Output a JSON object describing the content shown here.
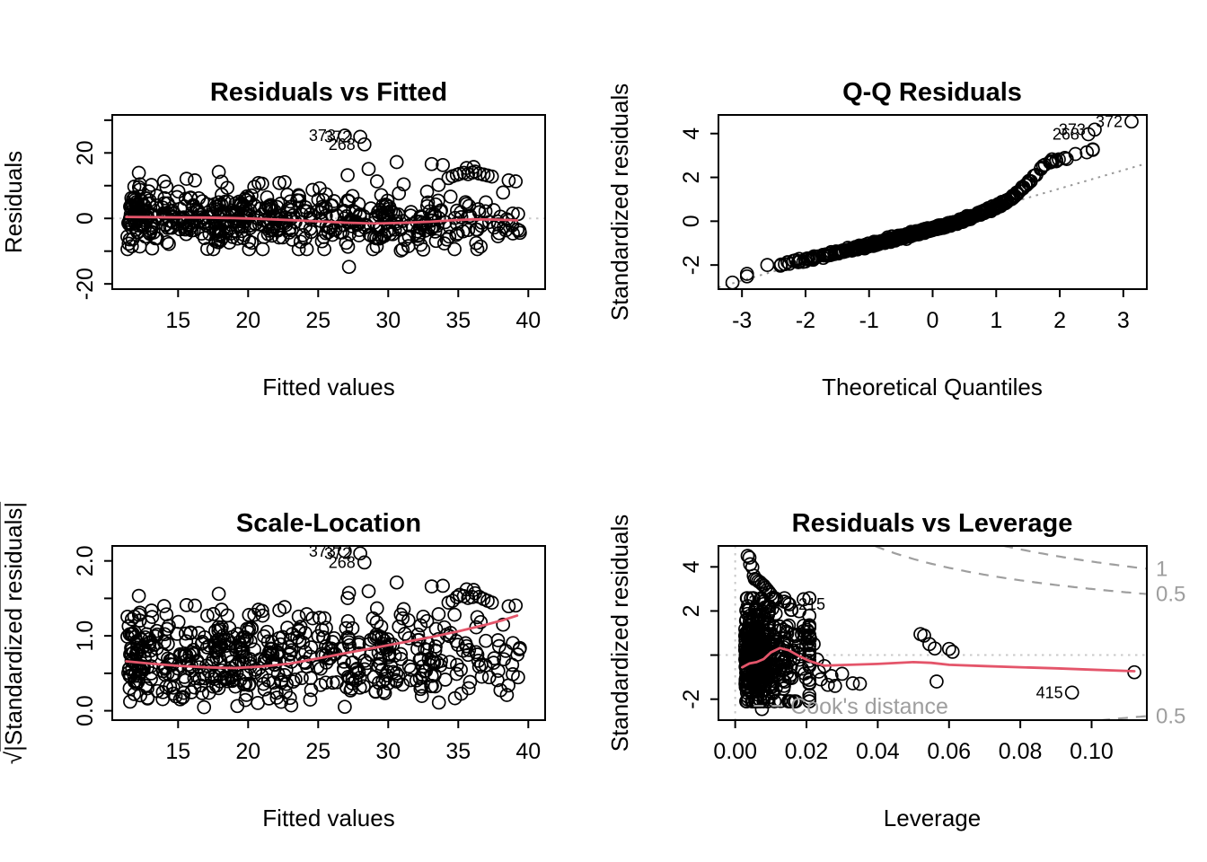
{
  "style": {
    "background": "#ffffff",
    "point_color": "#000000",
    "smooth_color": "#e4556a",
    "ref_color": "#c9c9c9",
    "qqline_color": "#999999",
    "cook_color": "#9e9e9e",
    "frame_color": "#000000"
  },
  "chart_data": [
    {
      "id": "residuals_vs_fitted",
      "type": "scatter",
      "title": "Residuals vs Fitted",
      "xlabel": "Fitted values",
      "ylabel": "Residuals",
      "xlim": [
        10.3,
        41.2
      ],
      "ylim": [
        -21.6,
        31.6
      ],
      "xticks": [
        15,
        20,
        25,
        30,
        35,
        40
      ],
      "xtick_labels": [
        "15",
        "20",
        "25",
        "30",
        "35",
        "40"
      ],
      "yticks": [
        -20,
        -10,
        0,
        10,
        20,
        30
      ],
      "ytick_labels": [
        "-20",
        "",
        "0",
        "",
        "20",
        ""
      ],
      "ref_line_y": 0,
      "smooth": [
        [
          11.3,
          0.45
        ],
        [
          13,
          0.38
        ],
        [
          15,
          0.32
        ],
        [
          17,
          0.25
        ],
        [
          19,
          0.1
        ],
        [
          21,
          -0.15
        ],
        [
          23,
          -0.5
        ],
        [
          25,
          -0.9
        ],
        [
          27,
          -1.3
        ],
        [
          29,
          -1.55
        ],
        [
          31,
          -1.35
        ],
        [
          33,
          -1.0
        ],
        [
          34.5,
          -0.6
        ],
        [
          36,
          -0.3
        ],
        [
          37.5,
          -0.35
        ],
        [
          39.2,
          -0.6
        ]
      ],
      "labeled_points": [
        {
          "label": "373",
          "x": 26.9,
          "y": 25.3,
          "side": "left"
        },
        {
          "label": "372",
          "x": 28.0,
          "y": 24.9,
          "side": "left"
        },
        {
          "label": "268",
          "x": 28.3,
          "y": 22.6,
          "side": "left"
        }
      ],
      "extra_points": [
        [
          12.2,
          13.9
        ],
        [
          13.1,
          10.2
        ],
        [
          14,
          11.3
        ],
        [
          15.6,
          12.1
        ],
        [
          16.2,
          11.6
        ],
        [
          17.9,
          14.2
        ],
        [
          18.1,
          11.2
        ],
        [
          21,
          10.6
        ],
        [
          22.6,
          11.1
        ],
        [
          24.6,
          8.7
        ],
        [
          25.1,
          9.2
        ],
        [
          27.1,
          13.2
        ],
        [
          28.6,
          15.1
        ],
        [
          29.2,
          11.3
        ],
        [
          30.6,
          17.2
        ],
        [
          31.1,
          10.4
        ],
        [
          33.1,
          16.6
        ],
        [
          33.6,
          10.2
        ],
        [
          27.2,
          -14.8
        ],
        [
          34.3,
          12.3
        ],
        [
          34.6,
          12.9
        ],
        [
          34.9,
          13.3
        ],
        [
          35.1,
          13.6
        ],
        [
          35.4,
          13.9
        ],
        [
          35.7,
          13.5
        ],
        [
          36,
          14
        ],
        [
          36.2,
          14.3
        ],
        [
          36.5,
          13.7
        ],
        [
          36.8,
          13.4
        ],
        [
          37.1,
          13.1
        ],
        [
          37.4,
          12.8
        ],
        [
          35.6,
          15.4
        ],
        [
          36.1,
          15.7
        ],
        [
          33.9,
          16.3
        ],
        [
          38.6,
          11.6
        ],
        [
          39.1,
          11.3
        ],
        [
          38.9,
          -4.6
        ],
        [
          36.6,
          -8.6
        ],
        [
          38.2,
          7.9
        ],
        [
          30.9,
          -9.8
        ],
        [
          32.5,
          -9.5
        ]
      ],
      "cloud": {
        "kind": "groups",
        "seed": 42,
        "ysd": 4.3,
        "yclip": [
          -9.4,
          10.8
        ],
        "groups": [
          {
            "n": 60,
            "xmin": 11.35,
            "xmax": 12.45,
            "yshift": 0.2
          },
          {
            "n": 265,
            "xmin": 12.45,
            "xmax": 23.2,
            "yshift": 0.2
          },
          {
            "n": 175,
            "xmin": 23.2,
            "xmax": 33.6,
            "yshift": -1.2
          },
          {
            "n": 52,
            "xmin": 33.6,
            "xmax": 39.4,
            "yshift": -0.7
          }
        ]
      }
    },
    {
      "id": "qq_residuals",
      "type": "scatter",
      "title": "Q-Q Residuals",
      "xlabel": "Theoretical Quantiles",
      "ylabel": "Standardized residuals",
      "xlim": [
        -3.37,
        3.37
      ],
      "ylim": [
        -3.1,
        4.85
      ],
      "xticks": [
        -3,
        -2,
        -1,
        0,
        1,
        2,
        3
      ],
      "xtick_labels": [
        "-3",
        "-2",
        "-1",
        "0",
        "1",
        "2",
        "3"
      ],
      "yticks": [
        -2,
        0,
        2,
        4
      ],
      "ytick_labels": [
        "-2",
        "0",
        "2",
        "4"
      ],
      "qq_line": {
        "slope": 0.84,
        "intercept": -0.19
      },
      "curve": [
        [
          -3.1,
          -2.75
        ],
        [
          -2.7,
          -2.1
        ],
        [
          -2.5,
          -1.98
        ],
        [
          -2.3,
          -1.9
        ],
        [
          -2.1,
          -1.82
        ],
        [
          -1.9,
          -1.7
        ],
        [
          -1.6,
          -1.5
        ],
        [
          -1.3,
          -1.3
        ],
        [
          -1.0,
          -1.1
        ],
        [
          -0.7,
          -0.88
        ],
        [
          -0.4,
          -0.65
        ],
        [
          -0.1,
          -0.42
        ],
        [
          0.2,
          -0.2
        ],
        [
          0.5,
          0.08
        ],
        [
          0.8,
          0.42
        ],
        [
          1.0,
          0.65
        ],
        [
          1.15,
          0.85
        ],
        [
          1.3,
          1.2
        ],
        [
          1.45,
          1.6
        ],
        [
          1.6,
          2.05
        ],
        [
          1.72,
          2.45
        ],
        [
          1.82,
          2.7
        ],
        [
          1.95,
          2.78
        ],
        [
          2.1,
          2.87
        ],
        [
          2.25,
          3.0
        ],
        [
          2.4,
          3.18
        ],
        [
          2.52,
          3.3
        ]
      ],
      "labeled_points": [
        {
          "label": "373",
          "x": 2.55,
          "y": 4.18,
          "side": "left"
        },
        {
          "label": "372",
          "x": 3.13,
          "y": 4.55,
          "side": "left"
        },
        {
          "label": "268",
          "x": 2.45,
          "y": 3.97,
          "side": "left"
        }
      ],
      "extra_points": [
        [
          -3.15,
          -2.8
        ]
      ],
      "cloud": {
        "kind": "qq",
        "seed": 7,
        "n": 560,
        "xclip": [
          -2.92,
          2.52
        ],
        "jitter": 0.045
      }
    },
    {
      "id": "scale_location",
      "type": "scatter",
      "title": "Scale-Location",
      "xlabel": "Fitted values",
      "ylabel": "√|Standardized residuals|",
      "ylabel_parts": [
        "√",
        "|Standardized residuals|"
      ],
      "xlim": [
        10.3,
        41.2
      ],
      "ylim": [
        -0.125,
        2.2
      ],
      "xticks": [
        15,
        20,
        25,
        30,
        35,
        40
      ],
      "xtick_labels": [
        "15",
        "20",
        "25",
        "30",
        "35",
        "40"
      ],
      "yticks": [
        0,
        0.5,
        1,
        1.5,
        2
      ],
      "ytick_labels": [
        "0.0",
        "",
        "1.0",
        "",
        "2.0"
      ],
      "smooth": [
        [
          11.3,
          0.66
        ],
        [
          13,
          0.63
        ],
        [
          15,
          0.6
        ],
        [
          17,
          0.58
        ],
        [
          19,
          0.57
        ],
        [
          21,
          0.59
        ],
        [
          23,
          0.63
        ],
        [
          25,
          0.7
        ],
        [
          27,
          0.77
        ],
        [
          29,
          0.84
        ],
        [
          31,
          0.91
        ],
        [
          33,
          0.98
        ],
        [
          35,
          1.06
        ],
        [
          37,
          1.15
        ],
        [
          38.2,
          1.21
        ],
        [
          39.2,
          1.27
        ]
      ],
      "labeled_points": [
        {
          "label": "373",
          "x": 26.9,
          "y": 2.13,
          "side": "left"
        },
        {
          "label": "372",
          "x": 28.0,
          "y": 2.1,
          "side": "left"
        },
        {
          "label": "268",
          "x": 28.3,
          "y": 1.98,
          "side": "left"
        }
      ],
      "extra_points": [],
      "cloud": {
        "kind": "sqrt_of",
        "source": 0,
        "seed": 11,
        "denom": 5.9,
        "jitter": 0.06
      }
    },
    {
      "id": "residuals_vs_leverage",
      "type": "scatter",
      "title": "Residuals vs Leverage",
      "xlabel": "Leverage",
      "ylabel": "Standardized residuals",
      "xlim": [
        -0.0047,
        0.1155
      ],
      "ylim": [
        -2.95,
        4.95
      ],
      "xticks": [
        0,
        0.02,
        0.04,
        0.06,
        0.08,
        0.1
      ],
      "xtick_labels": [
        "0.00",
        "0.02",
        "0.04",
        "0.06",
        "0.08",
        "0.10"
      ],
      "yticks": [
        -2,
        0,
        2,
        4
      ],
      "ytick_labels": [
        "-2",
        "",
        "2",
        "4"
      ],
      "ref_line_y": 0,
      "ref_line_x": 0,
      "smooth": [
        [
          0.002,
          -0.55
        ],
        [
          0.004,
          -0.38
        ],
        [
          0.006,
          -0.32
        ],
        [
          0.008,
          -0.18
        ],
        [
          0.01,
          0.12
        ],
        [
          0.0125,
          0.32
        ],
        [
          0.015,
          0.22
        ],
        [
          0.018,
          -0.05
        ],
        [
          0.021,
          -0.28
        ],
        [
          0.025,
          -0.48
        ],
        [
          0.03,
          -0.45
        ],
        [
          0.04,
          -0.4
        ],
        [
          0.05,
          -0.32
        ],
        [
          0.055,
          -0.35
        ],
        [
          0.06,
          -0.44
        ],
        [
          0.07,
          -0.5
        ],
        [
          0.08,
          -0.55
        ],
        [
          0.09,
          -0.6
        ],
        [
          0.1,
          -0.66
        ],
        [
          0.112,
          -0.73
        ]
      ],
      "labeled_points": [
        {
          "label": "205",
          "x": 0.0138,
          "y": 2.42,
          "side": "left"
        },
        {
          "label": "215",
          "x": 0.0152,
          "y": 2.3,
          "side": "right"
        },
        {
          "label": "415",
          "x": 0.0945,
          "y": -1.7,
          "side": "left"
        }
      ],
      "extra_points": [
        [
          0.0035,
          4.5
        ],
        [
          0.004,
          4.42
        ],
        [
          0.0042,
          4.12
        ],
        [
          0.0048,
          3.98
        ],
        [
          0.0052,
          3.6
        ],
        [
          0.0055,
          3.45
        ],
        [
          0.006,
          3.42
        ],
        [
          0.0065,
          3.35
        ],
        [
          0.007,
          3.3
        ],
        [
          0.0075,
          3.22
        ],
        [
          0.008,
          3.15
        ],
        [
          0.0085,
          3.05
        ],
        [
          0.009,
          2.95
        ],
        [
          0.0095,
          2.85
        ],
        [
          0.01,
          2.75
        ],
        [
          0.0105,
          2.6
        ],
        [
          0.011,
          2.5
        ],
        [
          0.0115,
          2.55
        ],
        [
          0.0205,
          1.05
        ],
        [
          0.021,
          0.75
        ],
        [
          0.022,
          0.5
        ],
        [
          0.023,
          -0.2
        ],
        [
          0.0235,
          -0.75
        ],
        [
          0.024,
          -1.1
        ],
        [
          0.025,
          -0.5
        ],
        [
          0.026,
          -1.35
        ],
        [
          0.027,
          -0.95
        ],
        [
          0.028,
          -1.4
        ],
        [
          0.03,
          -0.85
        ],
        [
          0.033,
          -1.28
        ],
        [
          0.035,
          -1.3
        ],
        [
          0.052,
          0.95
        ],
        [
          0.053,
          0.88
        ],
        [
          0.0545,
          0.5
        ],
        [
          0.056,
          0.3
        ],
        [
          0.0565,
          -1.2
        ],
        [
          0.06,
          0.28
        ],
        [
          0.061,
          0.15
        ],
        [
          0.112,
          -0.78
        ],
        [
          0.0075,
          -2.45
        ]
      ],
      "cloud": {
        "kind": "leverage",
        "seed": 99,
        "n": 465,
        "h0": 0.0028,
        "hscale": 0.0058,
        "hmax": 0.0208,
        "ysd": 1.28,
        "yshift": 0.1,
        "yclip": [
          -2.1,
          2.58
        ]
      },
      "cook": {
        "p": 2,
        "contours": [
          {
            "level": 1,
            "sign": 1
          },
          {
            "level": 0.5,
            "sign": 1
          },
          {
            "level": 0.5,
            "sign": -1
          }
        ],
        "labels": [
          {
            "text": "1",
            "level": 1,
            "sign": 1
          },
          {
            "text": "0.5",
            "level": 0.5,
            "sign": 1
          },
          {
            "text": "0.5",
            "level": 0.5,
            "sign": -1
          }
        ],
        "legend_text": "Cook's distance",
        "legend_y": -2.3,
        "legend_dash_x": [
          0.0052,
          0.0132
        ],
        "legend_text_x": 0.0155
      }
    }
  ]
}
